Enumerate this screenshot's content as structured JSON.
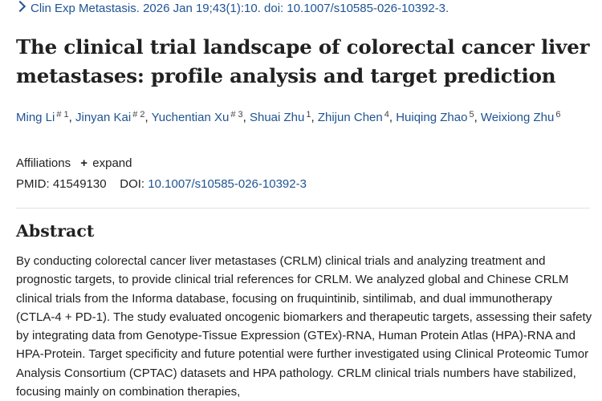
{
  "citation": {
    "journal": "Clin Exp Metastasis.",
    "details": "2026 Jan 19;43(1):10. doi: 10.1007/s10585-026-10392-3."
  },
  "article": {
    "title": "The clinical trial landscape of colorectal cancer liver metastases: profile analysis and target prediction"
  },
  "authors": [
    {
      "name": "Ming Li",
      "marks": "# 1"
    },
    {
      "name": "Jinyan Kai",
      "marks": "# 2"
    },
    {
      "name": "Yuchentian Xu",
      "marks": "# 3"
    },
    {
      "name": "Shuai Zhu",
      "marks": "1"
    },
    {
      "name": "Zhijun Chen",
      "marks": "4"
    },
    {
      "name": "Huiqing Zhao",
      "marks": "5"
    },
    {
      "name": "Weixiong Zhu",
      "marks": "6"
    }
  ],
  "affiliations": {
    "label": "Affiliations",
    "expand_label": "expand"
  },
  "identifiers": {
    "pmid_label": "PMID:",
    "pmid": "41549130",
    "doi_label": "DOI:",
    "doi": "10.1007/s10585-026-10392-3"
  },
  "abstract": {
    "heading": "Abstract",
    "text": "By conducting colorectal cancer liver metastases (CRLM) clinical trials and analyzing treatment and prognostic targets, to provide clinical trial references for CRLM. We analyzed global and Chinese CRLM clinical trials from the Informa database, focusing on fruquintinib, sintilimab, and dual immunotherapy (CTLA-4 + PD-1). The study evaluated oncogenic biomarkers and therapeutic targets, assessing their safety by integrating data from Genotype-Tissue Expression (GTEx)-RNA, Human Protein Atlas (HPA)-RNA and HPA-Protein. Target specificity and future potential were further investigated using Clinical Proteomic Tumor Analysis Consortium (CPTAC) datasets and HPA pathology. CRLM clinical trials numbers have stabilized, focusing mainly on combination therapies,"
  }
}
